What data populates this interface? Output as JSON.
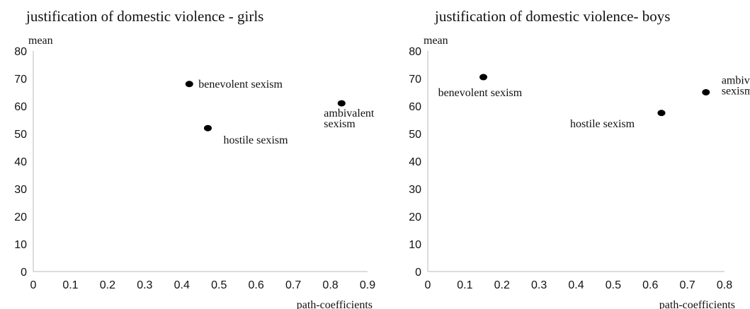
{
  "chart_data": [
    {
      "type": "scatter",
      "title": "justification of domestic violence - girls",
      "xlabel": "path-coefficients",
      "ylabel": "mean",
      "xlim": [
        0,
        0.9
      ],
      "ylim": [
        0,
        80
      ],
      "xticks": [
        "0",
        "0.1",
        "0.2",
        "0.3",
        "0.4",
        "0.5",
        "0.6",
        "0.7",
        "0.8",
        "0.9"
      ],
      "yticks": [
        "0",
        "10",
        "20",
        "30",
        "40",
        "50",
        "60",
        "70",
        "80"
      ],
      "grid": false,
      "points": [
        {
          "label": [
            "benevolent sexism"
          ],
          "x": 0.42,
          "y": 68
        },
        {
          "label": [
            "hostile sexism"
          ],
          "x": 0.47,
          "y": 52
        },
        {
          "label": [
            "ambivalent",
            "sexism"
          ],
          "x": 0.83,
          "y": 61
        }
      ]
    },
    {
      "type": "scatter",
      "title": "justification of domestic violence- boys",
      "xlabel": "path-coefficients",
      "ylabel": "mean",
      "xlim": [
        0,
        0.8
      ],
      "ylim": [
        0,
        80
      ],
      "xticks": [
        "0",
        "0.1",
        "0.2",
        "0.3",
        "0.4",
        "0.5",
        "0.6",
        "0.7",
        "0.8"
      ],
      "yticks": [
        "0",
        "10",
        "20",
        "30",
        "40",
        "50",
        "60",
        "70",
        "80"
      ],
      "grid": false,
      "points": [
        {
          "label": [
            "benevolent sexism"
          ],
          "x": 0.15,
          "y": 70.5
        },
        {
          "label": [
            "hostile sexism"
          ],
          "x": 0.63,
          "y": 57.5
        },
        {
          "label": [
            "ambivalent",
            "sexism"
          ],
          "x": 0.75,
          "y": 65
        }
      ]
    }
  ]
}
